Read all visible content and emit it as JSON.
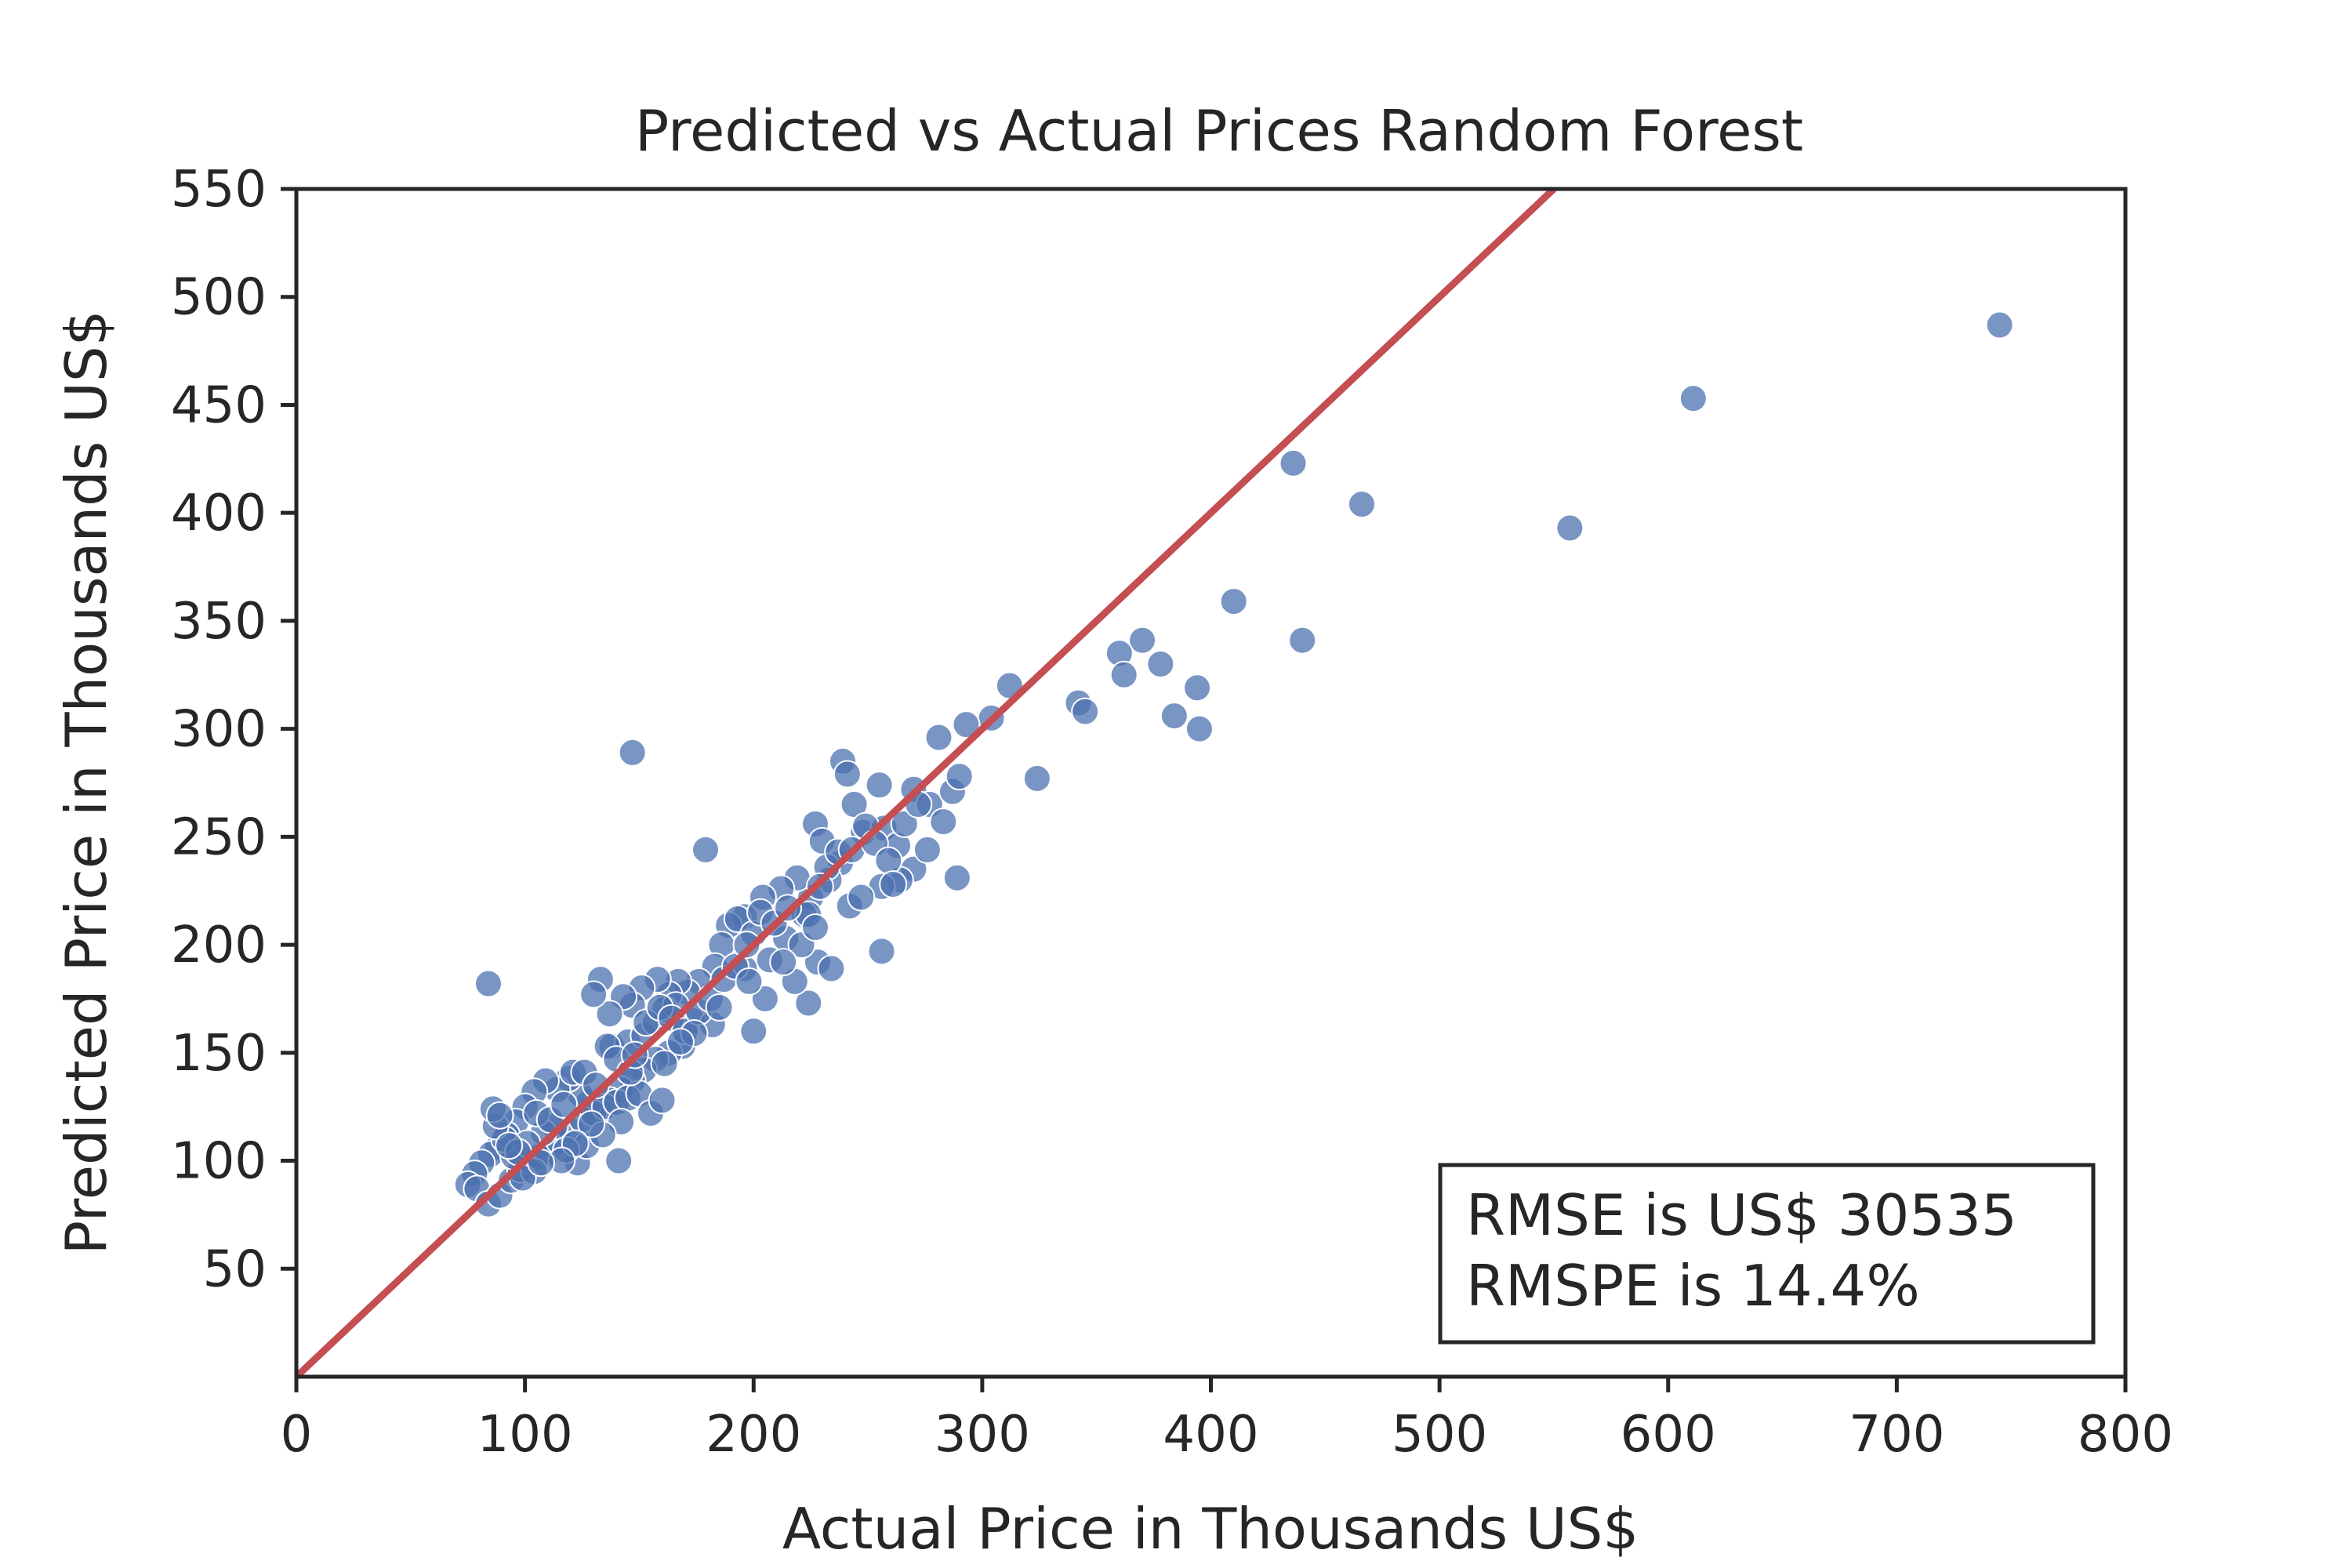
{
  "chart_data": {
    "type": "scatter",
    "title": "Predicted vs Actual Prices Random Forest",
    "xlabel": "Actual Price in Thousands US$",
    "ylabel": "Predicted Price in Thousands US$",
    "xlim": [
      0,
      800
    ],
    "ylim": [
      0,
      550
    ],
    "xticks": [
      "0",
      "100",
      "200",
      "300",
      "400",
      "500",
      "600",
      "700",
      "800"
    ],
    "yticks": [
      "50",
      "100",
      "150",
      "200",
      "250",
      "300",
      "350",
      "400",
      "450",
      "500",
      "550"
    ],
    "grid": false,
    "reference_line": {
      "from": [
        0,
        0
      ],
      "to": [
        550,
        550
      ],
      "color": "#c44e52"
    },
    "point_color": "#4c72b0",
    "stats": {
      "rmse": "RMSE is US$ 30535",
      "rmspe": "RMSPE is 14.4%"
    },
    "stats_position": "bottom-right",
    "points": [
      [
        745,
        487
      ],
      [
        611,
        453
      ],
      [
        557,
        393
      ],
      [
        436,
        423
      ],
      [
        466,
        404
      ],
      [
        410,
        359
      ],
      [
        440,
        341
      ],
      [
        370,
        341
      ],
      [
        360,
        335
      ],
      [
        378,
        330
      ],
      [
        362,
        325
      ],
      [
        394,
        319
      ],
      [
        384,
        306
      ],
      [
        395,
        300
      ],
      [
        312,
        320
      ],
      [
        304,
        305
      ],
      [
        293,
        302
      ],
      [
        281,
        296
      ],
      [
        342,
        312
      ],
      [
        345,
        308
      ],
      [
        324,
        277
      ],
      [
        147,
        289
      ],
      [
        84,
        182
      ],
      [
        179,
        244
      ],
      [
        141,
        100
      ],
      [
        256,
        197
      ],
      [
        289,
        231
      ],
      [
        224,
        173
      ],
      [
        200,
        160
      ],
      [
        205,
        175
      ],
      [
        239,
        285
      ],
      [
        241,
        279
      ],
      [
        255,
        274
      ],
      [
        244,
        265
      ],
      [
        270,
        272
      ],
      [
        277,
        265
      ],
      [
        283,
        257
      ],
      [
        287,
        271
      ],
      [
        290,
        278
      ],
      [
        227,
        256
      ],
      [
        230,
        248
      ],
      [
        238,
        238
      ],
      [
        248,
        252
      ],
      [
        257,
        254
      ],
      [
        263,
        246
      ],
      [
        270,
        235
      ],
      [
        276,
        244
      ],
      [
        264,
        230
      ],
      [
        256,
        227
      ],
      [
        242,
        218
      ],
      [
        233,
        230
      ],
      [
        225,
        222
      ],
      [
        219,
        231
      ],
      [
        212,
        226
      ],
      [
        204,
        222
      ],
      [
        196,
        213
      ],
      [
        189,
        209
      ],
      [
        186,
        200
      ],
      [
        193,
        212
      ],
      [
        200,
        205
      ],
      [
        207,
        193
      ],
      [
        214,
        203
      ],
      [
        222,
        214
      ],
      [
        228,
        192
      ],
      [
        234,
        189
      ],
      [
        224,
        214
      ],
      [
        218,
        183
      ],
      [
        196,
        189
      ],
      [
        183,
        190
      ],
      [
        176,
        183
      ],
      [
        171,
        178
      ],
      [
        167,
        183
      ],
      [
        163,
        177
      ],
      [
        158,
        184
      ],
      [
        151,
        180
      ],
      [
        147,
        172
      ],
      [
        143,
        176
      ],
      [
        137,
        168
      ],
      [
        133,
        184
      ],
      [
        130,
        177
      ],
      [
        138,
        153
      ],
      [
        145,
        155
      ],
      [
        152,
        158
      ],
      [
        157,
        164
      ],
      [
        161,
        170
      ],
      [
        166,
        172
      ],
      [
        173,
        165
      ],
      [
        182,
        163
      ],
      [
        169,
        153
      ],
      [
        163,
        150
      ],
      [
        157,
        147
      ],
      [
        152,
        142
      ],
      [
        147,
        137
      ],
      [
        142,
        133
      ],
      [
        137,
        128
      ],
      [
        133,
        123
      ],
      [
        128,
        127
      ],
      [
        124,
        131
      ],
      [
        119,
        138
      ],
      [
        114,
        133
      ],
      [
        109,
        137
      ],
      [
        104,
        132
      ],
      [
        100,
        125
      ],
      [
        96,
        118
      ],
      [
        92,
        112
      ],
      [
        88,
        106
      ],
      [
        85,
        103
      ],
      [
        81,
        99
      ],
      [
        78,
        94
      ],
      [
        75,
        89
      ],
      [
        79,
        87
      ],
      [
        84,
        80
      ],
      [
        89,
        84
      ],
      [
        94,
        91
      ],
      [
        98,
        96
      ],
      [
        102,
        100
      ],
      [
        106,
        102
      ],
      [
        110,
        104
      ],
      [
        115,
        109
      ],
      [
        120,
        114
      ],
      [
        125,
        119
      ],
      [
        130,
        122
      ],
      [
        135,
        125
      ],
      [
        140,
        127
      ],
      [
        145,
        129
      ],
      [
        150,
        131
      ],
      [
        155,
        122
      ],
      [
        160,
        128
      ],
      [
        123,
        99
      ],
      [
        127,
        107
      ],
      [
        118,
        105
      ],
      [
        113,
        116
      ],
      [
        108,
        113
      ],
      [
        104,
        95
      ],
      [
        99,
        92
      ],
      [
        95,
        102
      ],
      [
        91,
        110
      ],
      [
        87,
        116
      ],
      [
        86,
        124
      ],
      [
        89,
        121
      ],
      [
        105,
        122
      ],
      [
        111,
        119
      ],
      [
        117,
        126
      ],
      [
        121,
        141
      ],
      [
        126,
        141
      ],
      [
        131,
        135
      ],
      [
        136,
        153
      ],
      [
        140,
        147
      ],
      [
        146,
        141
      ],
      [
        153,
        164
      ],
      [
        159,
        171
      ],
      [
        164,
        166
      ],
      [
        170,
        160
      ],
      [
        176,
        169
      ],
      [
        181,
        175
      ],
      [
        187,
        184
      ],
      [
        192,
        190
      ],
      [
        197,
        200
      ],
      [
        203,
        215
      ],
      [
        209,
        210
      ],
      [
        215,
        217
      ],
      [
        221,
        200
      ],
      [
        227,
        208
      ],
      [
        232,
        236
      ],
      [
        237,
        243
      ],
      [
        243,
        244
      ],
      [
        249,
        255
      ],
      [
        253,
        247
      ],
      [
        259,
        239
      ],
      [
        266,
        256
      ],
      [
        272,
        265
      ],
      [
        261,
        228
      ],
      [
        247,
        222
      ],
      [
        229,
        227
      ],
      [
        213,
        192
      ],
      [
        198,
        183
      ],
      [
        185,
        171
      ],
      [
        174,
        159
      ],
      [
        168,
        155
      ],
      [
        161,
        145
      ],
      [
        148,
        149
      ],
      [
        142,
        118
      ],
      [
        134,
        112
      ],
      [
        129,
        117
      ],
      [
        122,
        108
      ],
      [
        116,
        100
      ],
      [
        107,
        99
      ],
      [
        101,
        108
      ],
      [
        97,
        104
      ],
      [
        93,
        107
      ]
    ]
  }
}
